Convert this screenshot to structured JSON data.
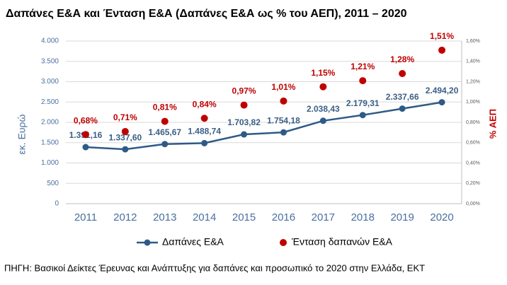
{
  "chart_data": {
    "type": "line",
    "title": "Δαπάνες Ε&Α και Ένταση Ε&Α (Δαπάνες Ε&Α ως % του ΑΕΠ), 2011 – 2020",
    "ylabel": "εκ. Ευρώ",
    "y2label": "% ΑΕΠ",
    "source": "ΠΗΓΗ: Βασικοί Δείκτες Έρευνας και Ανάπτυξης για δαπάνες και προσωπικό το 2020 στην Ελλάδα, ΕΚΤ",
    "categories": [
      "2011",
      "2012",
      "2013",
      "2014",
      "2015",
      "2016",
      "2017",
      "2018",
      "2019",
      "2020"
    ],
    "series": [
      {
        "name": "Δαπάνες Ε&Α",
        "type": "line",
        "color": "#2e5a87",
        "values": [
          1391.16,
          1337.6,
          1465.67,
          1488.74,
          1703.82,
          1754.18,
          2038.43,
          2179.31,
          2337.66,
          2494.2
        ],
        "value_labels": [
          "1.391,16",
          "1.337,60",
          "1.465,67",
          "1.488,74",
          "1.703,82",
          "1.754,18",
          "2.038,43",
          "2.179,31",
          "2.337,66",
          "2.494,20"
        ]
      },
      {
        "name": "Ένταση δαπανών Ε&Α",
        "type": "scatter",
        "axis": "y2",
        "color": "#c00000",
        "values": [
          0.68,
          0.71,
          0.81,
          0.84,
          0.97,
          1.01,
          1.15,
          1.21,
          1.28,
          1.51
        ],
        "value_labels": [
          "0,68%",
          "0,71%",
          "0,81%",
          "0,84%",
          "0,97%",
          "1,01%",
          "1,15%",
          "1,21%",
          "1,28%",
          "1,51%"
        ]
      }
    ],
    "ylim": [
      0,
      4000
    ],
    "yticks": [
      0,
      500,
      {
        "value": 1000,
        "label": "1.000"
      },
      {
        "value": 1500,
        "label": "1.500"
      },
      {
        "value": 2000,
        "label": "2.000"
      },
      {
        "value": 2500,
        "label": "2.500"
      },
      {
        "value": 3000,
        "label": "3.000"
      },
      {
        "value": 3500,
        "label": "3.500"
      },
      {
        "value": 4000,
        "label": "4.000"
      }
    ],
    "y2lim": [
      0,
      1.6
    ],
    "y2ticks": [
      {
        "value": 0,
        "label": "0,00%"
      },
      {
        "value": 0.2,
        "label": "0,20%"
      },
      {
        "value": 0.4,
        "label": "0,40%"
      },
      {
        "value": 0.6,
        "label": "0,60%"
      },
      {
        "value": 0.8,
        "label": "0,80%"
      },
      {
        "value": 1.0,
        "label": "1,00%"
      },
      {
        "value": 1.2,
        "label": "1,20%"
      },
      {
        "value": 1.4,
        "label": "1,40%"
      },
      {
        "value": 1.6,
        "label": "1,60%"
      }
    ],
    "grid": true,
    "legend": "bottom"
  }
}
